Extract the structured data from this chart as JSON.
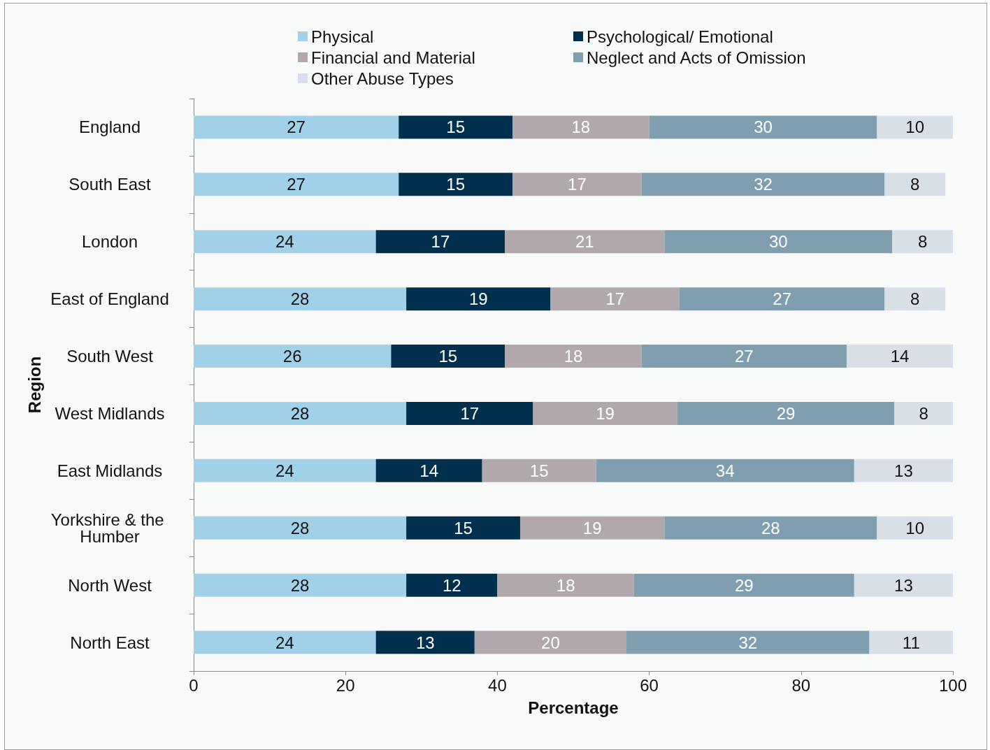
{
  "chart_data": {
    "type": "bar",
    "orientation": "horizontal",
    "stacked": true,
    "xlabel": "Percentage",
    "ylabel": "Region",
    "categories": [
      "England",
      "South East",
      "London",
      "East of England",
      "South West",
      "West Midlands",
      "East Midlands",
      "Yorkshire & the Humber",
      "North West",
      "North East"
    ],
    "series": [
      {
        "name": "Physical",
        "color": "#a1d1e8",
        "values": [
          27,
          27,
          24,
          28,
          26,
          28,
          24,
          28,
          28,
          24
        ],
        "value_labels": [
          "27",
          "27",
          "24",
          "28",
          "26",
          "28",
          "24",
          "28",
          "28",
          "24"
        ]
      },
      {
        "name": "Psychological/ Emotional",
        "color": "#00304d",
        "values": [
          15,
          15,
          17,
          19,
          15,
          16.7,
          14,
          15,
          12,
          13
        ],
        "value_labels": [
          "15",
          "15",
          "17",
          "19",
          "15",
          "17",
          "14",
          "15",
          "12",
          "13"
        ]
      },
      {
        "name": "Financial and Material",
        "color": "#b1a8ad",
        "values": [
          18,
          17,
          21,
          17,
          18,
          19,
          15,
          19,
          18,
          20
        ],
        "value_labels": [
          "18",
          "17",
          "21",
          "17",
          "18",
          "19",
          "15",
          "19",
          "18",
          "20"
        ]
      },
      {
        "name": "Neglect and Acts of Omission",
        "color": "#7f9fb0",
        "values": [
          30,
          32,
          30,
          27,
          27,
          28.6,
          34,
          28,
          29,
          32
        ],
        "value_labels": [
          "30",
          "32",
          "30",
          "27",
          "27",
          "29",
          "34",
          "28",
          "29",
          "32"
        ]
      },
      {
        "name": "Other Abuse Types",
        "color": "#d8dfe6",
        "values": [
          10,
          8,
          8,
          8,
          14,
          7.7,
          13,
          10,
          13,
          11
        ],
        "value_labels": [
          "10",
          "8",
          "8",
          "8",
          "14",
          "8",
          "13",
          "10",
          "13",
          "11"
        ]
      }
    ],
    "xlim": [
      0,
      100
    ],
    "xticks": [
      0,
      20,
      40,
      60,
      80,
      100
    ],
    "grid": false,
    "legend": "top"
  }
}
